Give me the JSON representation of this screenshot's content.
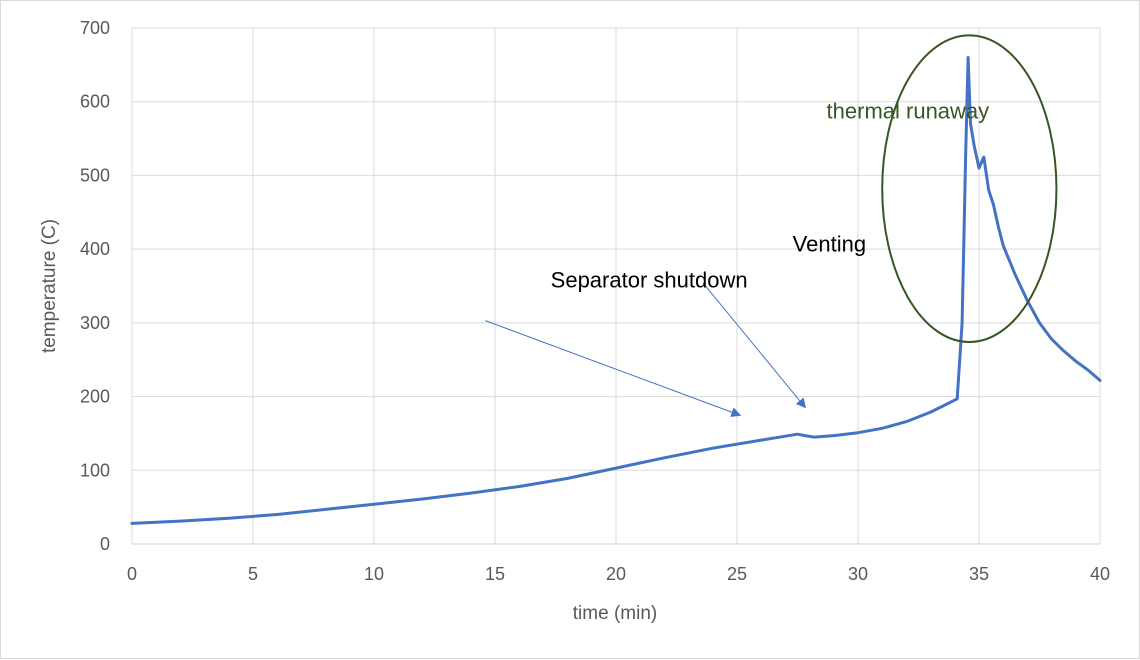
{
  "chart_data": {
    "type": "line",
    "title": "",
    "xlabel": "time (min)",
    "ylabel": "temperature (C)",
    "xlim": [
      0,
      40
    ],
    "ylim": [
      0,
      700
    ],
    "x_ticks": [
      0,
      5,
      10,
      15,
      20,
      25,
      30,
      35,
      40
    ],
    "y_ticks": [
      0,
      100,
      200,
      300,
      400,
      500,
      600,
      700
    ],
    "grid": true,
    "legend": "none",
    "series": [
      {
        "color": "#4472c4",
        "x": [
          0,
          2,
          4,
          6,
          8,
          10,
          12,
          14,
          16,
          18,
          20,
          22,
          24,
          26,
          27.5,
          27.8,
          28.2,
          29,
          30,
          31,
          32,
          33,
          33.8,
          34.1,
          34.3,
          34.45,
          34.55,
          34.65,
          34.8,
          35.0,
          35.2,
          35.4,
          35.6,
          35.8,
          36.0,
          36.5,
          37,
          37.5,
          38,
          38.5,
          39,
          39.5,
          40
        ],
        "y": [
          28,
          31,
          35,
          40,
          47,
          54,
          61,
          69,
          78,
          89,
          103,
          117,
          130,
          141,
          149,
          147,
          145,
          147,
          151,
          157,
          166,
          179,
          192,
          197,
          300,
          530,
          660,
          570,
          540,
          510,
          525,
          480,
          460,
          430,
          405,
          365,
          330,
          300,
          278,
          262,
          248,
          236,
          222
        ]
      }
    ],
    "annotations": [
      {
        "text": "thermal runaway",
        "color": "#375623",
        "x": 28.7,
        "y": 577
      },
      {
        "text": "Venting",
        "x": 27.3,
        "y": 397
      },
      {
        "text": "Separator shutdown",
        "x": 17.3,
        "y": 348
      }
    ],
    "arrows": [
      {
        "from": [
          14.6,
          303
        ],
        "to": [
          25.1,
          175
        ]
      },
      {
        "from": [
          23.6,
          354
        ],
        "to": [
          27.8,
          186
        ]
      }
    ],
    "ellipse": {
      "cx": 34.6,
      "cy": 482,
      "rx": 3.6,
      "ry": 208,
      "color": "#375623"
    }
  }
}
